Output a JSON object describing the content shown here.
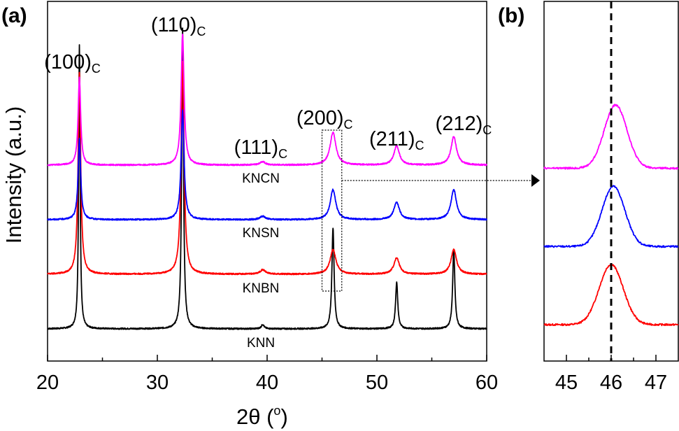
{
  "panels": {
    "a": "(a)",
    "b": "(b)"
  },
  "axes": {
    "ylabel": "Intensity (a.u.)",
    "xlabel_main": "2θ (",
    "xlabel_deg": "o",
    "xlabel_close": ")"
  },
  "chart_data": [
    {
      "type": "line",
      "panel": "a",
      "x_range": [
        20,
        60
      ],
      "x_ticks": [
        "20",
        "30",
        "40",
        "50",
        "60"
      ],
      "ylabel": "Intensity (a.u.)",
      "xlabel": "2θ (°)",
      "y_ticks_shown": false,
      "peak_labels": [
        {
          "text": "(100)",
          "sub": "C",
          "two_theta": 22.9
        },
        {
          "text": "(110)",
          "sub": "C",
          "two_theta": 32.3
        },
        {
          "text": "(111)",
          "sub": "C",
          "two_theta": 39.8
        },
        {
          "text": "(200)",
          "sub": "C",
          "two_theta": 46.0
        },
        {
          "text": "(211)",
          "sub": "C",
          "two_theta": 51.8
        },
        {
          "text": "(212)",
          "sub": "C",
          "two_theta": 57.0
        }
      ],
      "peak_positions": [
        22.9,
        32.3,
        39.6,
        46.0,
        51.8,
        57.0
      ],
      "series": [
        {
          "name": "KNN",
          "color": "#000000",
          "baseline": 0.0,
          "peak_heights": [
            5.2,
            5.5,
            0.08,
            1.85,
            0.85,
            1.45
          ],
          "peak_widths": [
            0.08,
            0.1,
            0.15,
            0.12,
            0.12,
            0.12
          ]
        },
        {
          "name": "KNBN",
          "color": "#ff0000",
          "baseline": 1.0,
          "peak_heights": [
            3.7,
            3.9,
            0.08,
            0.45,
            0.3,
            0.45
          ],
          "peak_widths": [
            0.14,
            0.16,
            0.3,
            0.32,
            0.3,
            0.3
          ]
        },
        {
          "name": "KNSN",
          "color": "#0000ff",
          "baseline": 2.0,
          "peak_heights": [
            1.5,
            2.0,
            0.06,
            0.55,
            0.32,
            0.55
          ],
          "peak_widths": [
            0.14,
            0.16,
            0.3,
            0.3,
            0.3,
            0.3
          ]
        },
        {
          "name": "KNCN",
          "color": "#ff00ff",
          "baseline": 3.0,
          "peak_heights": [
            1.6,
            2.4,
            0.06,
            0.6,
            0.35,
            0.52
          ],
          "peak_widths": [
            0.14,
            0.16,
            0.3,
            0.32,
            0.3,
            0.3
          ]
        }
      ],
      "highlight_box_x": [
        45.0,
        46.8
      ]
    },
    {
      "type": "line",
      "panel": "b",
      "x_range": [
        44.5,
        47.5
      ],
      "x_ticks": [
        "45",
        "46",
        "47"
      ],
      "reference_line_x": 46.0,
      "series": [
        {
          "name": "KNBN",
          "color": "#ff0000",
          "center": 46.0,
          "width": 0.38,
          "height": 1.0,
          "baseline": 0.0
        },
        {
          "name": "KNSN",
          "color": "#0000ff",
          "center": 46.05,
          "width": 0.36,
          "height": 1.0,
          "baseline": 1.3
        },
        {
          "name": "KNCN",
          "color": "#ff00ff",
          "center": 46.1,
          "width": 0.36,
          "height": 1.05,
          "baseline": 2.6
        }
      ]
    }
  ]
}
